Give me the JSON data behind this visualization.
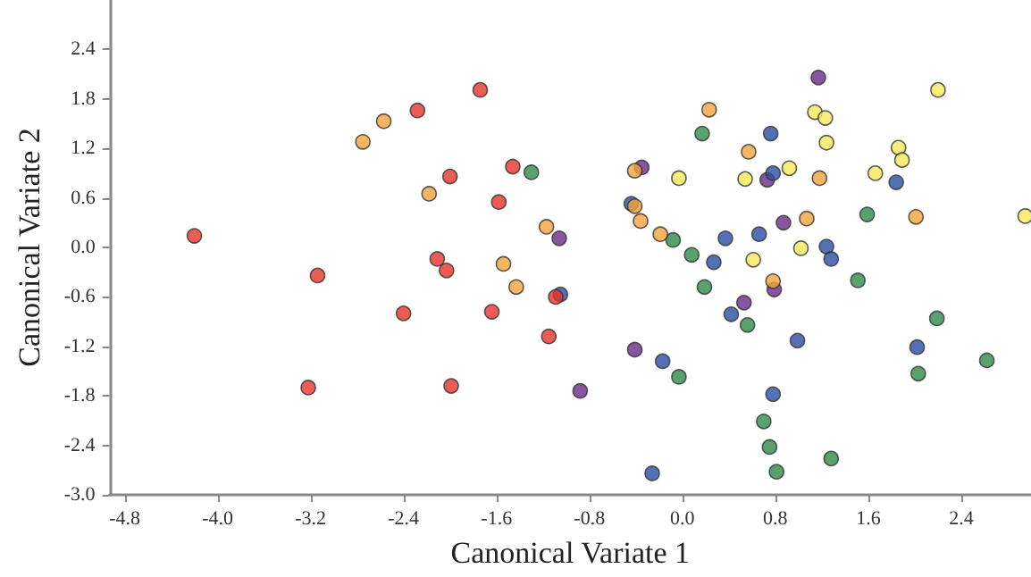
{
  "chart_data": {
    "type": "scatter",
    "xlabel": "Canonical Variate 1",
    "ylabel": "Canonical Variate 2",
    "xlim": [
      -4.93,
      3.0
    ],
    "xticks": [
      -4.8,
      {
        "value": -4,
        "label": "-4.0"
      },
      -3.2,
      -2.4,
      -1.6,
      -0.8,
      {
        "value": 0,
        "label": "0.0"
      },
      0.8,
      1.6,
      2.4
    ],
    "ylim": [
      -3.0,
      3.0
    ],
    "yticks": [
      {
        "value": -3,
        "label": "-3.0"
      },
      -2.4,
      -1.8,
      -1.2,
      -0.6,
      {
        "value": 0,
        "label": "0.0"
      },
      0.6,
      1.2,
      1.8,
      2.4
    ],
    "marker": "circle",
    "series": [
      {
        "color": "#e8322a",
        "x": [
          -1.74,
          -2.28,
          -2.0,
          -1.46,
          -1.58,
          -4.2,
          -2.11,
          -2.03,
          -3.14,
          -1.09,
          -2.4,
          -1.64,
          -1.15,
          -3.22,
          -1.99
        ],
        "values": [
          1.91,
          1.66,
          0.86,
          0.98,
          0.55,
          0.14,
          -0.14,
          -0.28,
          -0.34,
          -0.6,
          -0.8,
          -0.78,
          -1.08,
          -1.7,
          -1.68
        ]
      },
      {
        "color": "#f4a23a",
        "x": [
          -2.57,
          -2.75,
          -2.18,
          -1.17,
          -1.54,
          -1.43,
          0.23,
          0.57,
          -0.41,
          1.18,
          -0.41,
          -0.36,
          1.07,
          2.01,
          -0.19,
          0.78
        ],
        "values": [
          1.53,
          1.28,
          0.65,
          0.25,
          -0.2,
          -0.48,
          1.67,
          1.16,
          0.93,
          0.84,
          0.5,
          0.32,
          0.35,
          0.37,
          0.16,
          -0.41
        ]
      },
      {
        "color": "#f5e85a",
        "x": [
          2.2,
          1.14,
          1.23,
          1.24,
          1.86,
          1.89,
          -0.03,
          0.54,
          0.92,
          1.66,
          2.95,
          0.61,
          1.02
        ],
        "values": [
          1.91,
          1.64,
          1.57,
          1.27,
          1.21,
          1.06,
          0.84,
          0.83,
          0.96,
          0.9,
          0.38,
          -0.15,
          -0.01
        ]
      },
      {
        "color": "#2e8b4a",
        "x": [
          -1.3,
          0.17,
          1.59,
          -0.08,
          0.08,
          1.51,
          0.19,
          0.56,
          2.19,
          2.62,
          -0.03,
          2.03,
          0.7,
          0.75,
          1.28,
          0.81
        ],
        "values": [
          0.91,
          1.38,
          0.4,
          0.09,
          -0.09,
          -0.4,
          -0.48,
          -0.94,
          -0.86,
          -1.37,
          -1.57,
          -1.53,
          -2.11,
          -2.42,
          -2.56,
          -2.72
        ]
      },
      {
        "color": "#2b4ea2",
        "x": [
          -1.05,
          0.76,
          0.78,
          1.84,
          -0.44,
          0.37,
          0.66,
          1.24,
          1.28,
          0.27,
          0.42,
          0.99,
          2.02,
          -0.17,
          0.78,
          -0.26
        ],
        "values": [
          -0.57,
          1.38,
          0.9,
          0.79,
          0.53,
          0.11,
          0.16,
          0.01,
          -0.14,
          -0.18,
          -0.81,
          -1.13,
          -1.21,
          -1.38,
          -1.78,
          -2.74
        ]
      },
      {
        "color": "#6a2a8a",
        "x": [
          -1.06,
          1.17,
          -0.35,
          0.73,
          0.87,
          0.79,
          0.53,
          -0.41,
          -0.88
        ],
        "values": [
          0.11,
          2.06,
          0.97,
          0.82,
          0.3,
          -0.51,
          -0.67,
          -1.24,
          -1.74
        ]
      }
    ]
  }
}
